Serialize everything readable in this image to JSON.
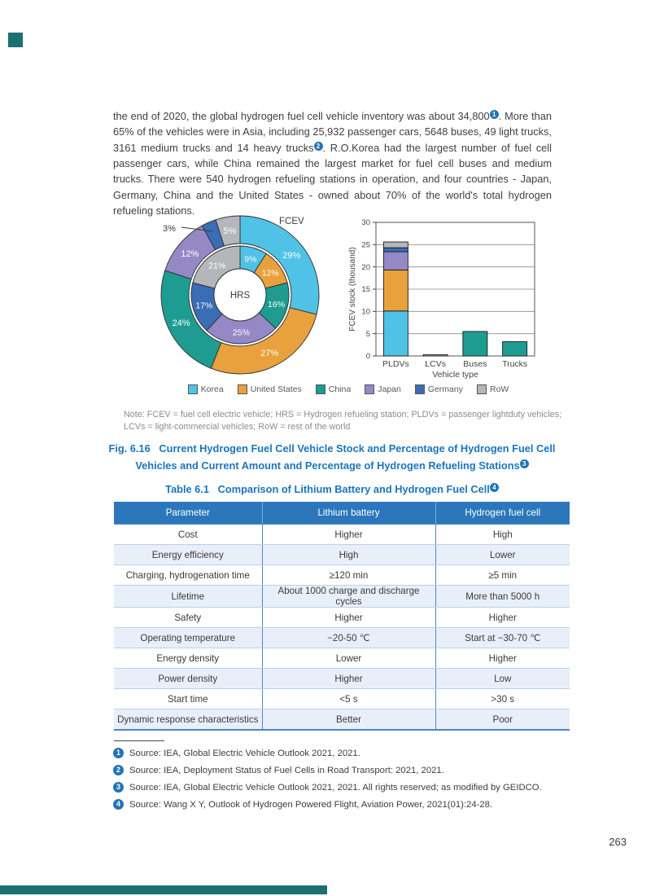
{
  "page": {
    "number": "263"
  },
  "paragraph": {
    "part1": "the end of 2020, the global hydrogen fuel cell vehicle inventory was about 34,800",
    "ref1": "1",
    "part2": ". More than 65% of the vehicles were in Asia, including 25,932 passenger cars, 5648 buses, 49 light trucks, 3161 medium trucks and 14 heavy trucks",
    "ref2": "2",
    "part3": ". R.O.Korea had the largest number of fuel cell passenger cars, while China remained the largest market for fuel cell buses and medium trucks. There were 540 hydrogen refueling stations in operation, and four countries - Japan, Germany, China and the United States - owned about 70% of the world's total hydrogen refueling stations."
  },
  "colors": {
    "Korea": "#4fc2e5",
    "United States": "#e8a13c",
    "China": "#1e9c92",
    "Japan": "#9489c4",
    "Germany": "#3a6db5",
    "RoW": "#b5b6ba"
  },
  "legend": {
    "items": [
      "Korea",
      "United States",
      "China",
      "Japan",
      "Germany",
      "RoW"
    ]
  },
  "chart_data": [
    {
      "type": "pie",
      "subtype": "double-donut",
      "categories": [
        "Korea",
        "United States",
        "China",
        "Japan",
        "Germany",
        "RoW"
      ],
      "outer_ring": {
        "name": "FCEV",
        "values": [
          29,
          27,
          24,
          12,
          3,
          5
        ],
        "unit": "%"
      },
      "inner_ring": {
        "name": "HRS",
        "values": [
          9,
          12,
          16,
          25,
          17,
          21
        ],
        "unit": "%"
      },
      "center_label": "HRS",
      "ring_label": "FCEV",
      "callout": {
        "index": 4,
        "text": "3%"
      },
      "legend_position": "bottom"
    },
    {
      "type": "bar",
      "stacked": true,
      "categories": [
        "PLDVs",
        "LCVs",
        "Buses",
        "Trucks"
      ],
      "series": [
        {
          "name": "Korea",
          "values": [
            10.1,
            0,
            0,
            0
          ]
        },
        {
          "name": "United States",
          "values": [
            9.2,
            0,
            0,
            0
          ]
        },
        {
          "name": "China",
          "values": [
            0,
            0,
            5.5,
            3.2
          ]
        },
        {
          "name": "Japan",
          "values": [
            4.1,
            0,
            0,
            0
          ]
        },
        {
          "name": "Germany",
          "values": [
            0.9,
            0,
            0,
            0
          ]
        },
        {
          "name": "RoW",
          "values": [
            1.3,
            0.3,
            0,
            0
          ]
        }
      ],
      "title": "",
      "xlabel": "Vehicle type",
      "ylabel": "FCEV stock (thousand)",
      "ylim": [
        0,
        30
      ],
      "ytick": 5,
      "grid": true
    }
  ],
  "note": "Note: FCEV = fuel cell electric vehicle; HRS = Hydrogen refueling station; PLDVs = passenger lightduty vehicles; LCVs = light-commercial vehicles; RoW = rest of the world",
  "figure": {
    "label": "Fig. 6.16",
    "text": "Current Hydrogen Fuel Cell Vehicle Stock and Percentage of Hydrogen Fuel Cell Vehicles and Current Amount and Percentage of Hydrogen Refueling Stations",
    "ref": "3"
  },
  "table": {
    "label": "Table 6.1",
    "title": "Comparison of Lithium Battery and Hydrogen Fuel Cell",
    "ref": "4",
    "headers": [
      "Parameter",
      "Lithium battery",
      "Hydrogen fuel cell"
    ],
    "rows": [
      [
        "Cost",
        "Higher",
        "High"
      ],
      [
        "Energy efficiency",
        "High",
        "Lower"
      ],
      [
        "Charging, hydrogenation time",
        "≥120 min",
        "≥5 min"
      ],
      [
        "Lifetime",
        "About 1000 charge and discharge cycles",
        "More than 5000 h"
      ],
      [
        "Safety",
        "Higher",
        "Higher"
      ],
      [
        "Operating temperature",
        "−20-50 ℃",
        "Start at −30-70 ℃"
      ],
      [
        "Energy density",
        "Lower",
        "Higher"
      ],
      [
        "Power density",
        "Higher",
        "Low"
      ],
      [
        "Start time",
        "<5 s",
        ">30 s"
      ],
      [
        "Dynamic response characteristics",
        "Better",
        "Poor"
      ]
    ]
  },
  "footnotes": [
    {
      "num": "1",
      "text": "Source: IEA, Global Electric Vehicle Outlook 2021, 2021."
    },
    {
      "num": "2",
      "text": "Source: IEA, Deployment Status of Fuel Cells in Road Transport: 2021, 2021."
    },
    {
      "num": "3",
      "text": "Source: IEA, Global Electric Vehicle Outlook 2021, 2021. All rights reserved; as modified by GEIDCO."
    },
    {
      "num": "4",
      "text": "Source: Wang X Y, Outlook of Hydrogen Powered Flight, Aviation Power, 2021(01):24-28."
    }
  ]
}
